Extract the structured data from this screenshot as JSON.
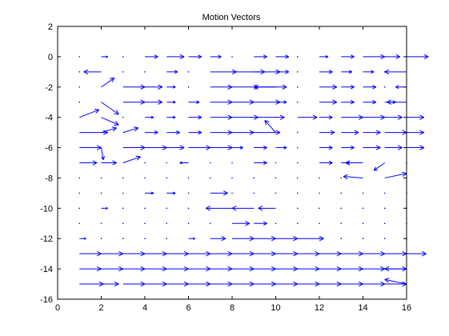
{
  "chart_data": {
    "type": "quiver",
    "title": "Motion Vectors",
    "xlabel": "",
    "ylabel": "",
    "xlim": [
      0,
      16
    ],
    "ylim": [
      -16,
      2
    ],
    "xticks": [
      0,
      2,
      4,
      6,
      8,
      10,
      12,
      14,
      16
    ],
    "yticks": [
      2,
      0,
      -2,
      -4,
      -6,
      -8,
      -10,
      -12,
      -14,
      -16
    ],
    "grid": false,
    "legend": "none",
    "arrow_color": "#0000ff",
    "rows": [
      {
        "y": 0,
        "u": [
          0,
          0.3,
          0,
          0.6,
          0.8,
          0.6,
          0.5,
          0,
          0.6,
          0.6,
          0,
          0.4,
          0.6,
          1.0,
          0.7,
          1.0
        ]
      },
      {
        "y": -1,
        "u": [
          0,
          -0.8,
          0,
          0,
          0.5,
          0,
          1.2,
          1.5,
          1.2,
          0.6,
          0,
          0.6,
          0.5,
          0.5,
          0,
          -1.0
        ]
      },
      {
        "y": -2,
        "u": [
          0,
          0,
          1.0,
          0.8,
          0.4,
          0,
          1.0,
          1.2,
          1.5,
          -1.0,
          0,
          0.8,
          0.6,
          0.6,
          0,
          -0.5
        ]
      },
      {
        "y": -3,
        "u": [
          0,
          0,
          1.0,
          0.8,
          0.4,
          0.5,
          1.0,
          1.0,
          1.2,
          0.5,
          0,
          0.8,
          0.6,
          0.6,
          0.5,
          -0.9
        ]
      },
      {
        "y": -4,
        "u": [
          1.2,
          1.0,
          0,
          0.4,
          0.4,
          0.6,
          1.0,
          1.2,
          1.4,
          0,
          0.9,
          0.6,
          1.0,
          1.0,
          0.8,
          0.8
        ]
      },
      {
        "y": -5,
        "u": [
          1.3,
          1.2,
          1.0,
          0.6,
          0.6,
          0.6,
          1.0,
          1.0,
          1.2,
          0,
          0,
          0.7,
          0.8,
          0.8,
          1.0,
          0.8
        ]
      },
      {
        "y": -6,
        "u": [
          1.0,
          0.6,
          1.0,
          1.0,
          0.8,
          1.0,
          1.0,
          0.5,
          0.6,
          0.5,
          0,
          0.6,
          0.6,
          0.8,
          0.8,
          0.8
        ]
      },
      {
        "y": -7,
        "u": [
          0.8,
          0.7,
          0.8,
          0,
          0,
          -0.4,
          0,
          0,
          0.6,
          0,
          0,
          0.6,
          0.4,
          -0.8,
          0.7,
          0
        ]
      },
      {
        "y": -8,
        "u": [
          0,
          0,
          0,
          0,
          0,
          0,
          0,
          0,
          0,
          0,
          0,
          0,
          0,
          0,
          0,
          0
        ]
      },
      {
        "y": -9,
        "u": [
          0,
          0,
          0,
          0.4,
          0.4,
          0,
          0.8,
          0,
          0,
          0,
          0,
          0,
          0,
          0,
          0,
          0
        ]
      },
      {
        "y": -10,
        "u": [
          0,
          0.3,
          0,
          0,
          0,
          0,
          0,
          -1.2,
          -1.0,
          -0.8,
          0,
          0,
          0,
          0,
          0,
          0
        ]
      },
      {
        "y": -11,
        "u": [
          0,
          0,
          0,
          0,
          0,
          0,
          0,
          0.8,
          0.6,
          0,
          0,
          0,
          0,
          0,
          0,
          0
        ]
      },
      {
        "y": -12,
        "u": [
          0.3,
          0,
          0,
          0,
          0,
          0.3,
          0.7,
          1.0,
          1.0,
          1.0,
          1.2,
          0,
          0,
          0,
          0,
          0
        ]
      },
      {
        "y": -13,
        "u": [
          1.0,
          1.0,
          1.0,
          1.0,
          1.0,
          1.0,
          1.0,
          1.0,
          1.0,
          1.0,
          1.0,
          1.0,
          1.0,
          1.0,
          1.0,
          0.9
        ]
      },
      {
        "y": -14,
        "u": [
          1.0,
          1.0,
          1.0,
          1.0,
          1.0,
          1.0,
          1.0,
          1.0,
          1.0,
          1.0,
          1.0,
          1.0,
          1.0,
          1.0,
          1.0,
          -1.0
        ]
      },
      {
        "y": -15,
        "u": [
          1.1,
          0.8,
          1.0,
          1.0,
          1.0,
          1.0,
          1.0,
          1.0,
          1.0,
          1.0,
          1.0,
          1.0,
          1.0,
          1.0,
          1.0,
          -1.0
        ]
      }
    ],
    "special_vectors": [
      {
        "x": 1,
        "y": -4,
        "u": 0.9,
        "v": 0.5
      },
      {
        "x": 2,
        "y": -2,
        "u": 0.6,
        "v": 0.6
      },
      {
        "x": 2,
        "y": -3,
        "u": 0.8,
        "v": -0.8
      },
      {
        "x": 2,
        "y": -4,
        "u": 0.8,
        "v": -0.5
      },
      {
        "x": 2,
        "y": -5,
        "u": 0.7,
        "v": 0.3
      },
      {
        "x": 2,
        "y": -6,
        "u": 0.1,
        "v": -0.8
      },
      {
        "x": 3,
        "y": -5,
        "u": 0.7,
        "v": 0.3
      },
      {
        "x": 3,
        "y": -7,
        "u": 0.8,
        "v": 0.4
      },
      {
        "x": 10,
        "y": -5,
        "u": -0.5,
        "v": 0.8
      },
      {
        "x": 15,
        "y": -7,
        "u": -0.5,
        "v": -0.5
      },
      {
        "x": 15,
        "y": -8,
        "u": 1.0,
        "v": 0.3
      },
      {
        "x": 14,
        "y": -8,
        "u": -0.9,
        "v": 0.1
      },
      {
        "x": 16,
        "y": -15,
        "u": -1.0,
        "v": 0.3
      }
    ]
  }
}
